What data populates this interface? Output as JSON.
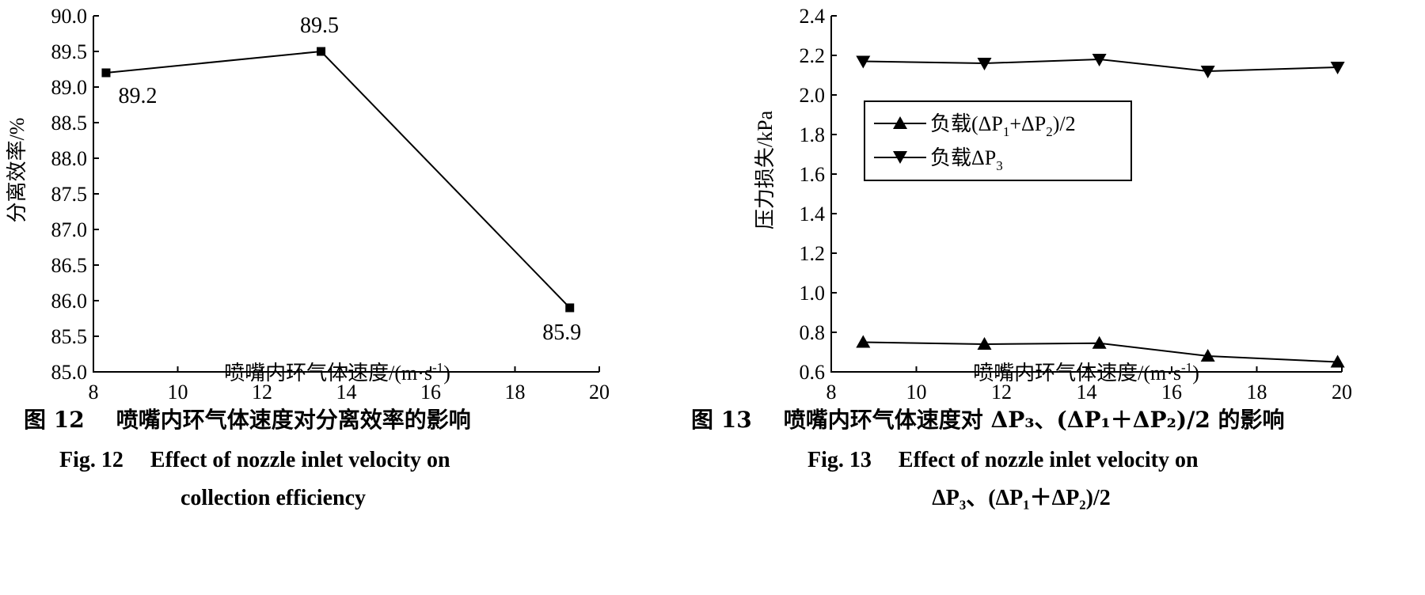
{
  "chart_data": [
    {
      "type": "line",
      "id": "fig12",
      "title": "",
      "xlabel": "喷嘴内环气体速度/(m·s",
      "xlabel_sup": "-1",
      "xlabel_close": ")",
      "ylabel": "分离效率/%",
      "xlim": [
        8,
        20
      ],
      "ylim": [
        85.0,
        90.0
      ],
      "x_ticks": [
        "8",
        "10",
        "12",
        "14",
        "16",
        "18",
        "20"
      ],
      "y_ticks": [
        "85.0",
        "85.5",
        "86.0",
        "86.5",
        "87.0",
        "87.5",
        "88.0",
        "88.5",
        "89.0",
        "89.5",
        "90.0"
      ],
      "series": [
        {
          "name": "分离效率",
          "marker": "square",
          "x": [
            8.3,
            13.4,
            19.3
          ],
          "y": [
            89.2,
            89.5,
            85.9
          ],
          "labels": [
            "89.2",
            "89.5",
            "85.9"
          ]
        }
      ],
      "caption_zh": {
        "fig": "图 12",
        "text": "喷嘴内环气体速度对分离效率的影响"
      },
      "caption_en": {
        "fig": "Fig. 12",
        "line1": "Effect of nozzle inlet velocity on",
        "line2": "collection efficiency"
      }
    },
    {
      "type": "line",
      "id": "fig13",
      "title": "",
      "xlabel": "喷嘴内环气体速度/(m·s",
      "xlabel_sup": "-1",
      "xlabel_close": ")",
      "ylabel": "压力损失/kPa",
      "xlim": [
        8,
        20
      ],
      "ylim": [
        0.6,
        2.4
      ],
      "x_ticks": [
        "8",
        "10",
        "12",
        "14",
        "16",
        "18",
        "20"
      ],
      "y_ticks": [
        "0.6",
        "0.8",
        "1.0",
        "1.2",
        "1.4",
        "1.6",
        "1.8",
        "2.0",
        "2.2",
        "2.4"
      ],
      "legend_position": "upper-left",
      "series": [
        {
          "name": "负载(ΔP1+ΔP2)/2",
          "legend": {
            "pre": "负载(ΔP",
            "s1": "1",
            "mid": "+ΔP",
            "s2": "2",
            "post": ")/2"
          },
          "marker": "triangle-up",
          "x": [
            8.75,
            11.6,
            14.3,
            16.85,
            19.9
          ],
          "y": [
            0.75,
            0.74,
            0.745,
            0.68,
            0.65
          ]
        },
        {
          "name": "负载ΔP3",
          "legend": {
            "pre": "负载ΔP",
            "s1": "3"
          },
          "marker": "triangle-down",
          "x": [
            8.75,
            11.6,
            14.3,
            16.85,
            19.9
          ],
          "y": [
            2.17,
            2.16,
            2.18,
            2.12,
            2.14
          ]
        }
      ],
      "caption_zh": {
        "fig": "图 13",
        "text": "喷嘴内环气体速度对 ΔP₃、(ΔP₁＋ΔP₂)/2 的影响"
      },
      "caption_en": {
        "fig": "Fig. 13",
        "line1": "Effect of nozzle inlet velocity on",
        "line2": "ΔP₃、(ΔP₁＋ΔP₂)/2"
      }
    }
  ]
}
